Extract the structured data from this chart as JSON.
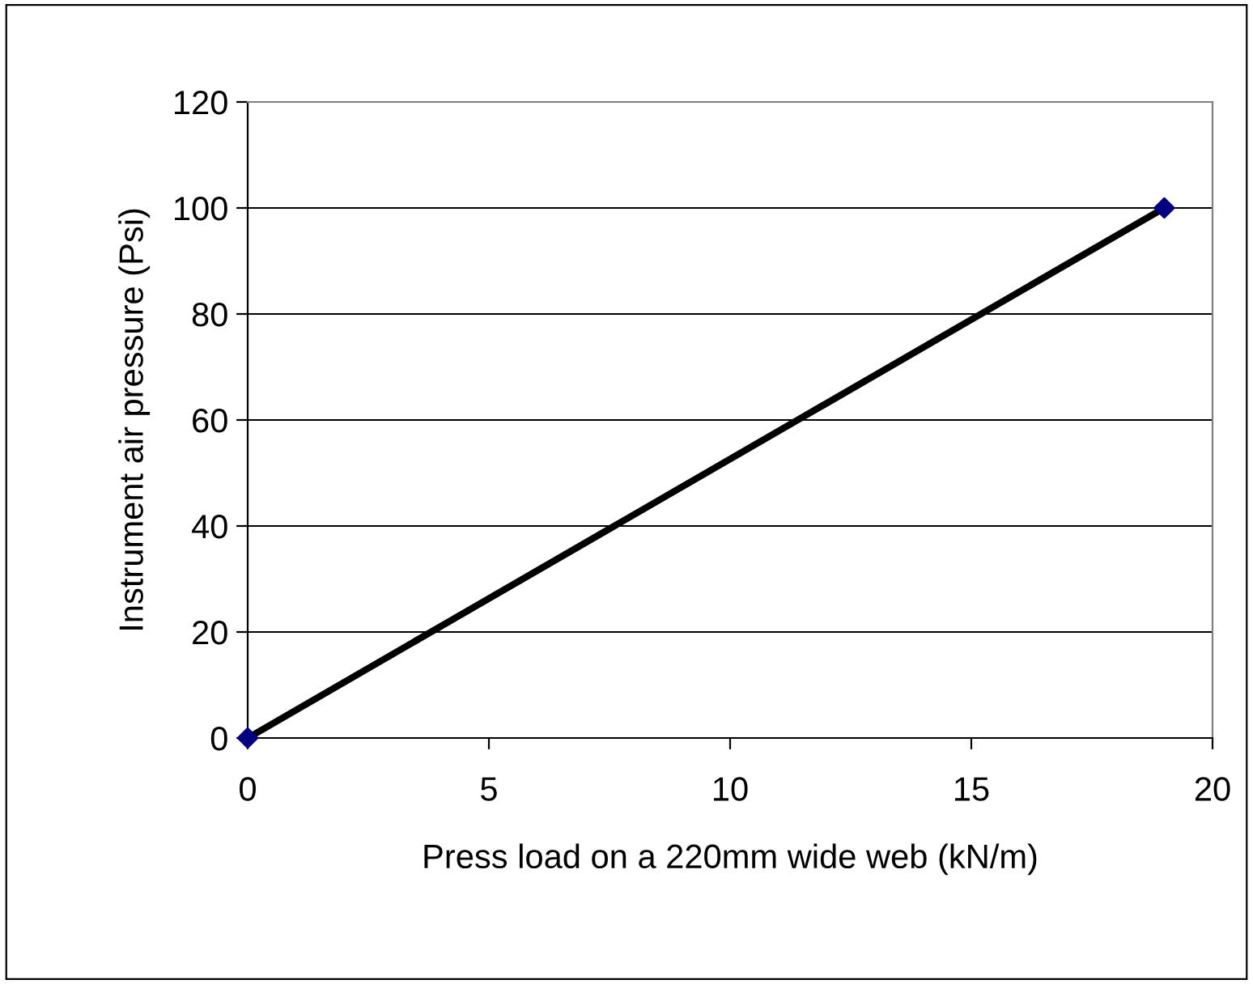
{
  "chart_data": {
    "type": "line",
    "xlabel": "Press load on a 220mm wide web (kN/m)",
    "ylabel": "Instrument air pressure (Psi)",
    "series": [
      {
        "color": "#000000",
        "x": [
          0,
          19
        ],
        "values": [
          0,
          100
        ],
        "colors": [
          "#000080",
          "#000080"
        ]
      }
    ],
    "marker": "diamond",
    "line_style": "solid",
    "xlim": [
      0,
      20
    ],
    "xticks": [
      0,
      5,
      10,
      15,
      20
    ],
    "ylim": [
      0,
      120
    ],
    "yticks": [
      0,
      20,
      40,
      60,
      80,
      100,
      120
    ],
    "grid": "y",
    "legend": false
  }
}
